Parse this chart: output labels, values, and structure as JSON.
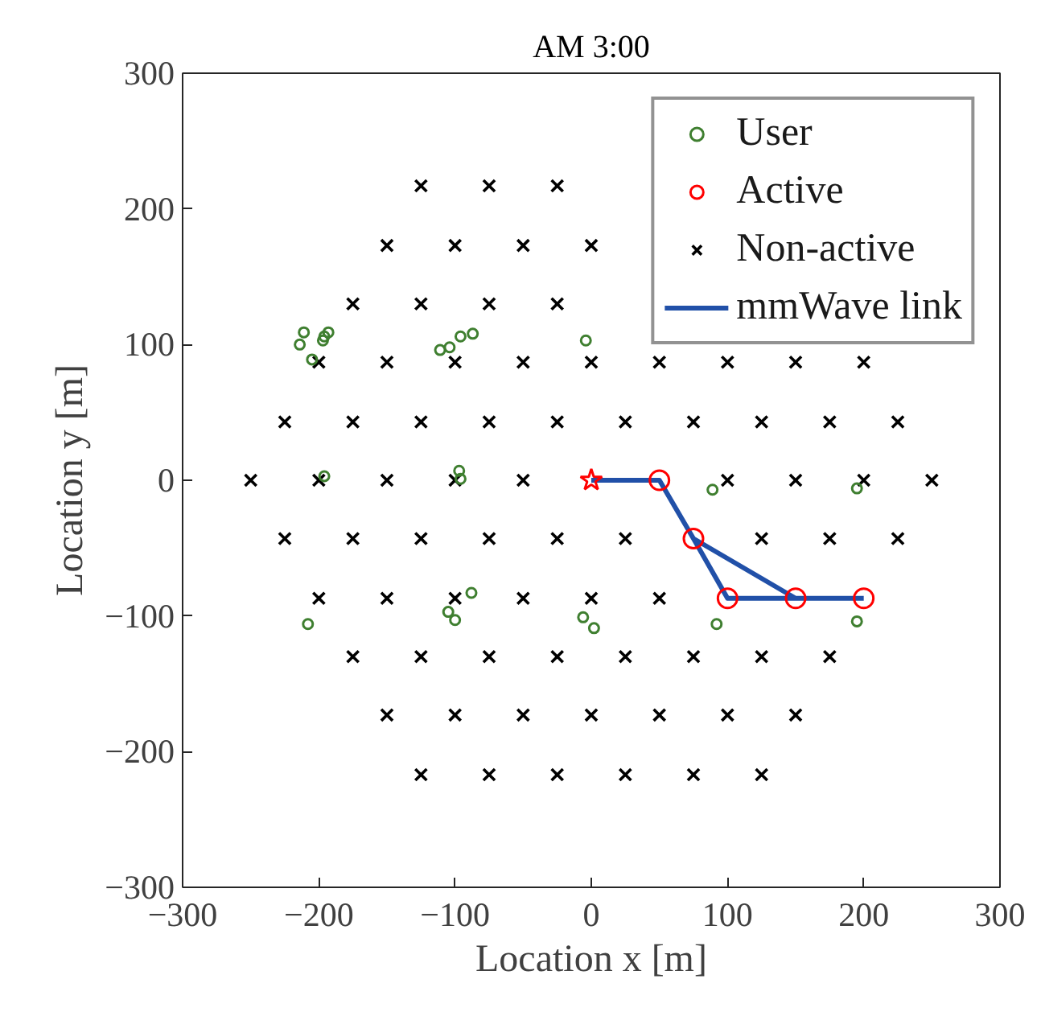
{
  "chart_data": {
    "type": "scatter",
    "title": "AM 3:00",
    "xlabel": "Location x [m]",
    "ylabel": "Location y [m]",
    "xlim": [
      -300,
      300
    ],
    "ylim": [
      -300,
      300
    ],
    "xticks": [
      -300,
      -200,
      -100,
      0,
      100,
      200,
      300
    ],
    "yticks": [
      -300,
      -200,
      -100,
      0,
      100,
      200,
      300
    ],
    "grid": false,
    "legend": "top right",
    "series": [
      {
        "name": "User",
        "color": "#3f7f30",
        "marker": "circle",
        "x": [
          -211,
          -214,
          -197,
          -196,
          -193,
          -205,
          -111,
          -104,
          -96,
          -87,
          -4,
          -196,
          -97,
          -96,
          -208,
          -88,
          -105,
          -100,
          -6,
          2,
          89,
          195,
          92,
          195
        ],
        "values": [
          109,
          100,
          103,
          106,
          109,
          89,
          96,
          98,
          106,
          108,
          103,
          3,
          7,
          1,
          -106,
          -83,
          -97,
          -103,
          -101,
          -109,
          -7,
          -6,
          -106,
          -104
        ]
      },
      {
        "name": "Active",
        "color": "#ff0000",
        "marker": "circle",
        "x": [
          50,
          75,
          100,
          150,
          200
        ],
        "values": [
          0,
          -43,
          -87,
          -87,
          -87
        ]
      },
      {
        "name": "Non-active",
        "color": "#000000",
        "marker": "cross",
        "x": [
          -125,
          -75,
          -25,
          -150,
          -100,
          -50,
          0,
          -175,
          -125,
          -75,
          -25,
          -200,
          -150,
          -100,
          -50,
          0,
          50,
          100,
          150,
          200,
          -225,
          -175,
          -125,
          -75,
          -25,
          25,
          75,
          125,
          175,
          225,
          -250,
          -200,
          -150,
          -100,
          -50,
          100,
          150,
          200,
          250,
          -225,
          -175,
          -125,
          -75,
          -25,
          25,
          125,
          175,
          225,
          -200,
          -150,
          -100,
          -50,
          0,
          50,
          -175,
          -125,
          -75,
          -25,
          25,
          75,
          125,
          175,
          -150,
          -100,
          -50,
          0,
          50,
          100,
          150,
          -125,
          -75,
          -25,
          25,
          75,
          125
        ],
        "values": [
          217,
          217,
          217,
          173,
          173,
          173,
          173,
          130,
          130,
          130,
          130,
          87,
          87,
          87,
          87,
          87,
          87,
          87,
          87,
          87,
          43,
          43,
          43,
          43,
          43,
          43,
          43,
          43,
          43,
          43,
          0,
          0,
          0,
          0,
          0,
          0,
          0,
          0,
          0,
          -43,
          -43,
          -43,
          -43,
          -43,
          -43,
          -43,
          -43,
          -43,
          -87,
          -87,
          -87,
          -87,
          -87,
          -87,
          -130,
          -130,
          -130,
          -130,
          -130,
          -130,
          -130,
          -130,
          -173,
          -173,
          -173,
          -173,
          -173,
          -173,
          -173,
          -217,
          -217,
          -217,
          -217,
          -217,
          -217
        ]
      },
      {
        "name": "mmWave link",
        "type": "line",
        "color": "#2150a8",
        "marker": "none",
        "line_style": "solid",
        "x": [
          0,
          50,
          75,
          100,
          150,
          200,
          null,
          75,
          150
        ],
        "values": [
          0,
          0,
          -43,
          -87,
          -87,
          -87,
          null,
          -43,
          -87
        ]
      },
      {
        "color": "#ff0000",
        "marker": "star",
        "x": [
          0
        ],
        "values": [
          0
        ]
      }
    ]
  }
}
